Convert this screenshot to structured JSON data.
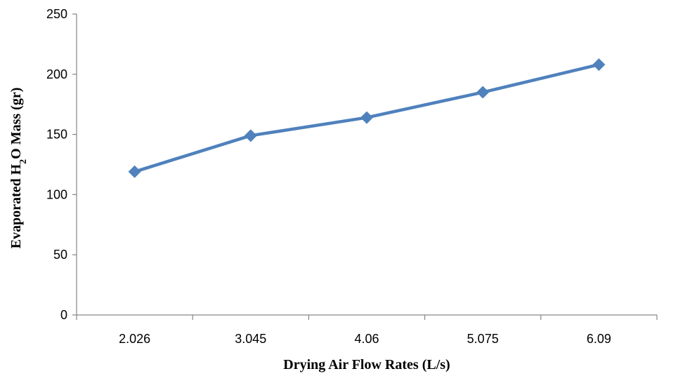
{
  "chart_data": {
    "type": "line",
    "categories": [
      "2.026",
      "3.045",
      "4.06",
      "5.075",
      "6.09"
    ],
    "series": [
      {
        "values": [
          119,
          149,
          164,
          185,
          208
        ],
        "color": "#4f81bd",
        "marker": "diamond"
      }
    ],
    "xlabel": "Drying Air Flow Rates (L/s)",
    "ylabel": {
      "prefix": "Evaporated H",
      "subscript": "2",
      "suffix": "O Mass (gr)"
    },
    "ylim": [
      0,
      250
    ],
    "yticks": [
      0,
      50,
      100,
      150,
      200,
      250
    ],
    "grid": false,
    "legend": "none"
  }
}
